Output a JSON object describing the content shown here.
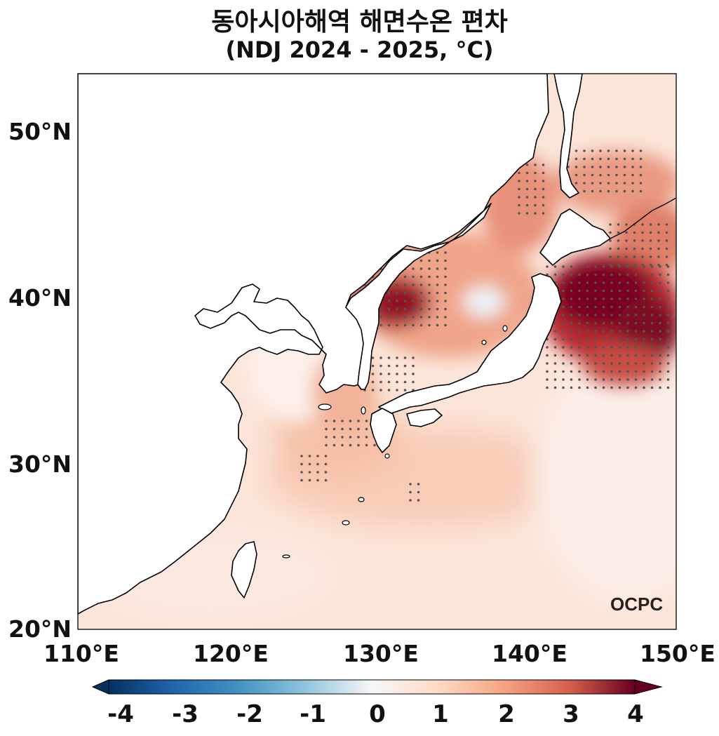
{
  "title": "동아시아해역 해면수온 편차",
  "subtitle": "(NDJ 2024 - 2025, °C)",
  "lat_labels": [
    "50°N",
    "40°N",
    "30°N",
    "20°N"
  ],
  "lon_labels": [
    "110°E",
    "120°E",
    "130°E",
    "140°E",
    "150°E"
  ],
  "colorbar": {
    "ticks": [
      "-4",
      "-3",
      "-2",
      "-1",
      "0",
      "1",
      "2",
      "3",
      "4"
    ],
    "colors": [
      "#053061",
      "#2166ac",
      "#4393c3",
      "#92c5de",
      "#f7f7f7",
      "#fddbc7",
      "#f4a582",
      "#d6604d",
      "#b2182b",
      "#67001f"
    ]
  },
  "logo": "OCPC",
  "map_extent": {
    "lon": [
      110,
      150
    ],
    "lat": [
      20,
      53.5
    ]
  }
}
